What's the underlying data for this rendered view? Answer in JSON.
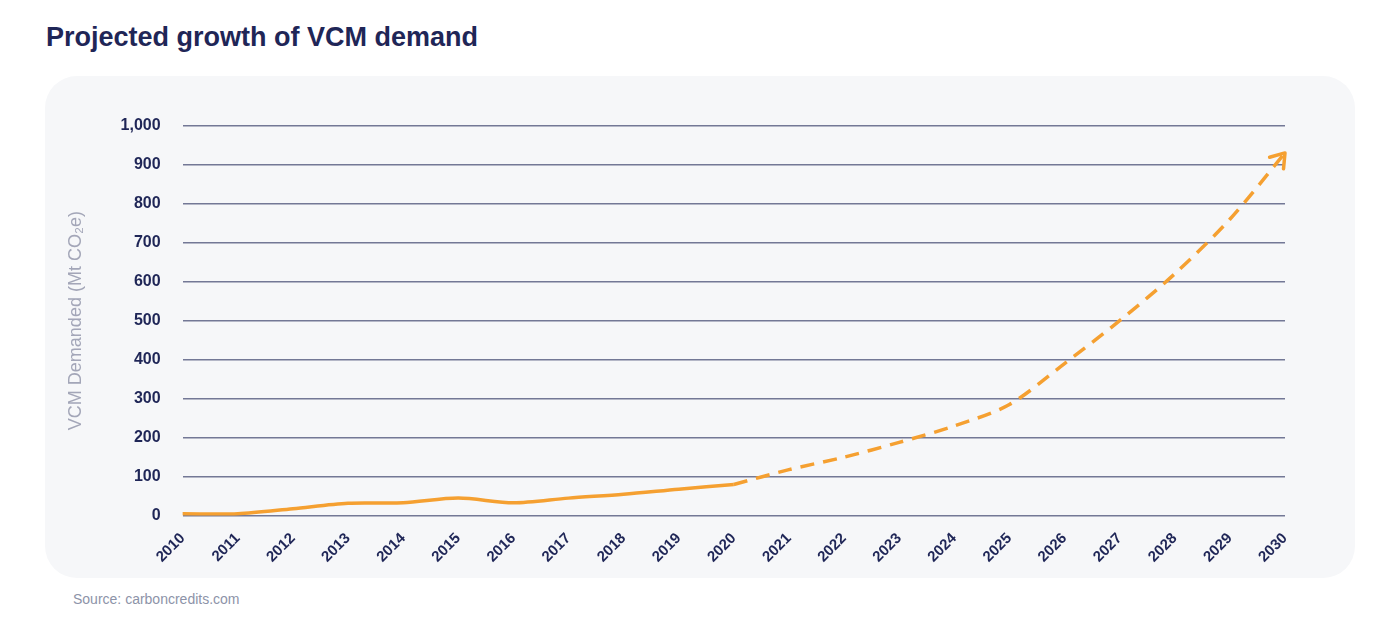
{
  "chart_data": {
    "type": "line",
    "title": "Projected growth of VCM demand",
    "y_label": "VCM Demanded (Mt CO₂e)",
    "source": "Source: carboncredits.com",
    "categories": [
      "2010",
      "2011",
      "2012",
      "2013",
      "2014",
      "2015",
      "2016",
      "2017",
      "2018",
      "2019",
      "2020",
      "2021",
      "2022",
      "2023",
      "2024",
      "2025",
      "2026",
      "2027",
      "2028",
      "2029",
      "2030"
    ],
    "series": [
      {
        "color": "#f5a031",
        "line_style": "solid",
        "marker": "none",
        "values": [
          5,
          5,
          18,
          32,
          33,
          45,
          33,
          45,
          55,
          68,
          80,
          null,
          null,
          null,
          null,
          null,
          null,
          null,
          null,
          null,
          null
        ]
      },
      {
        "color": "#f5a031",
        "line_style": "dashed",
        "marker": "arrow",
        "values": [
          null,
          null,
          null,
          null,
          null,
          null,
          null,
          null,
          null,
          null,
          80,
          118,
          150,
          188,
          230,
          285,
          390,
          500,
          620,
          760,
          930
        ]
      }
    ],
    "ylim": [
      0,
      1000
    ],
    "yticks": [
      0,
      100,
      200,
      300,
      400,
      500,
      600,
      700,
      800,
      900,
      {
        "value": 1000,
        "label": "1,000"
      }
    ],
    "grid": true
  }
}
